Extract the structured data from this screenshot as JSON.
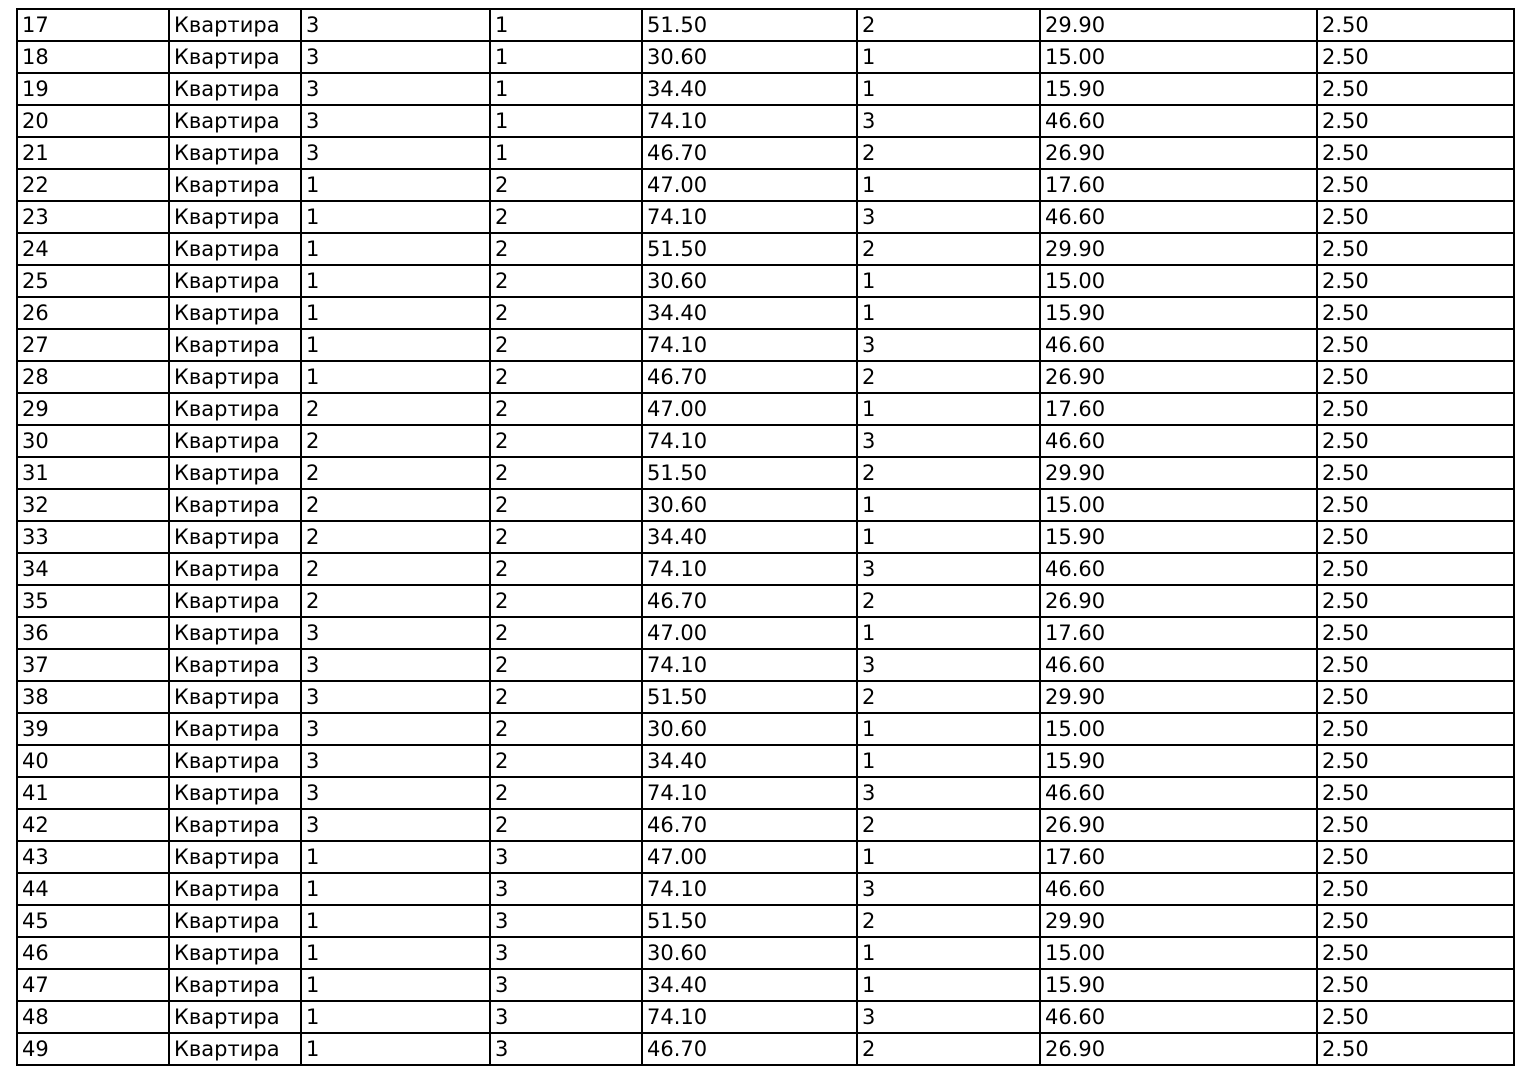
{
  "table": {
    "description": "apartment-listing-table",
    "row_label_text": "Квартира",
    "rows": [
      [
        "17",
        "Квартира",
        "3",
        "1",
        "51.50",
        "2",
        "29.90",
        "2.50"
      ],
      [
        "18",
        "Квартира",
        "3",
        "1",
        "30.60",
        "1",
        "15.00",
        "2.50"
      ],
      [
        "19",
        "Квартира",
        "3",
        "1",
        "34.40",
        "1",
        "15.90",
        "2.50"
      ],
      [
        "20",
        "Квартира",
        "3",
        "1",
        "74.10",
        "3",
        "46.60",
        "2.50"
      ],
      [
        "21",
        "Квартира",
        "3",
        "1",
        "46.70",
        "2",
        "26.90",
        "2.50"
      ],
      [
        "22",
        "Квартира",
        "1",
        "2",
        "47.00",
        "1",
        "17.60",
        "2.50"
      ],
      [
        "23",
        "Квартира",
        "1",
        "2",
        "74.10",
        "3",
        "46.60",
        "2.50"
      ],
      [
        "24",
        "Квартира",
        "1",
        "2",
        "51.50",
        "2",
        "29.90",
        "2.50"
      ],
      [
        "25",
        "Квартира",
        "1",
        "2",
        "30.60",
        "1",
        "15.00",
        "2.50"
      ],
      [
        "26",
        "Квартира",
        "1",
        "2",
        "34.40",
        "1",
        "15.90",
        "2.50"
      ],
      [
        "27",
        "Квартира",
        "1",
        "2",
        "74.10",
        "3",
        "46.60",
        "2.50"
      ],
      [
        "28",
        "Квартира",
        "1",
        "2",
        "46.70",
        "2",
        "26.90",
        "2.50"
      ],
      [
        "29",
        "Квартира",
        "2",
        "2",
        "47.00",
        "1",
        "17.60",
        "2.50"
      ],
      [
        "30",
        "Квартира",
        "2",
        "2",
        "74.10",
        "3",
        "46.60",
        "2.50"
      ],
      [
        "31",
        "Квартира",
        "2",
        "2",
        "51.50",
        "2",
        "29.90",
        "2.50"
      ],
      [
        "32",
        "Квартира",
        "2",
        "2",
        "30.60",
        "1",
        "15.00",
        "2.50"
      ],
      [
        "33",
        "Квартира",
        "2",
        "2",
        "34.40",
        "1",
        "15.90",
        "2.50"
      ],
      [
        "34",
        "Квартира",
        "2",
        "2",
        "74.10",
        "3",
        "46.60",
        "2.50"
      ],
      [
        "35",
        "Квартира",
        "2",
        "2",
        "46.70",
        "2",
        "26.90",
        "2.50"
      ],
      [
        "36",
        "Квартира",
        "3",
        "2",
        "47.00",
        "1",
        "17.60",
        "2.50"
      ],
      [
        "37",
        "Квартира",
        "3",
        "2",
        "74.10",
        "3",
        "46.60",
        "2.50"
      ],
      [
        "38",
        "Квартира",
        "3",
        "2",
        "51.50",
        "2",
        "29.90",
        "2.50"
      ],
      [
        "39",
        "Квартира",
        "3",
        "2",
        "30.60",
        "1",
        "15.00",
        "2.50"
      ],
      [
        "40",
        "Квартира",
        "3",
        "2",
        "34.40",
        "1",
        "15.90",
        "2.50"
      ],
      [
        "41",
        "Квартира",
        "3",
        "2",
        "74.10",
        "3",
        "46.60",
        "2.50"
      ],
      [
        "42",
        "Квартира",
        "3",
        "2",
        "46.70",
        "2",
        "26.90",
        "2.50"
      ],
      [
        "43",
        "Квартира",
        "1",
        "3",
        "47.00",
        "1",
        "17.60",
        "2.50"
      ],
      [
        "44",
        "Квартира",
        "1",
        "3",
        "74.10",
        "3",
        "46.60",
        "2.50"
      ],
      [
        "45",
        "Квартира",
        "1",
        "3",
        "51.50",
        "2",
        "29.90",
        "2.50"
      ],
      [
        "46",
        "Квартира",
        "1",
        "3",
        "30.60",
        "1",
        "15.00",
        "2.50"
      ],
      [
        "47",
        "Квартира",
        "1",
        "3",
        "34.40",
        "1",
        "15.90",
        "2.50"
      ],
      [
        "48",
        "Квартира",
        "1",
        "3",
        "74.10",
        "3",
        "46.60",
        "2.50"
      ],
      [
        "49",
        "Квартира",
        "1",
        "3",
        "46.70",
        "2",
        "26.90",
        "2.50"
      ]
    ],
    "colors": {
      "border": "#000000",
      "cell_background": "#ffffff",
      "text": "#000000"
    }
  }
}
